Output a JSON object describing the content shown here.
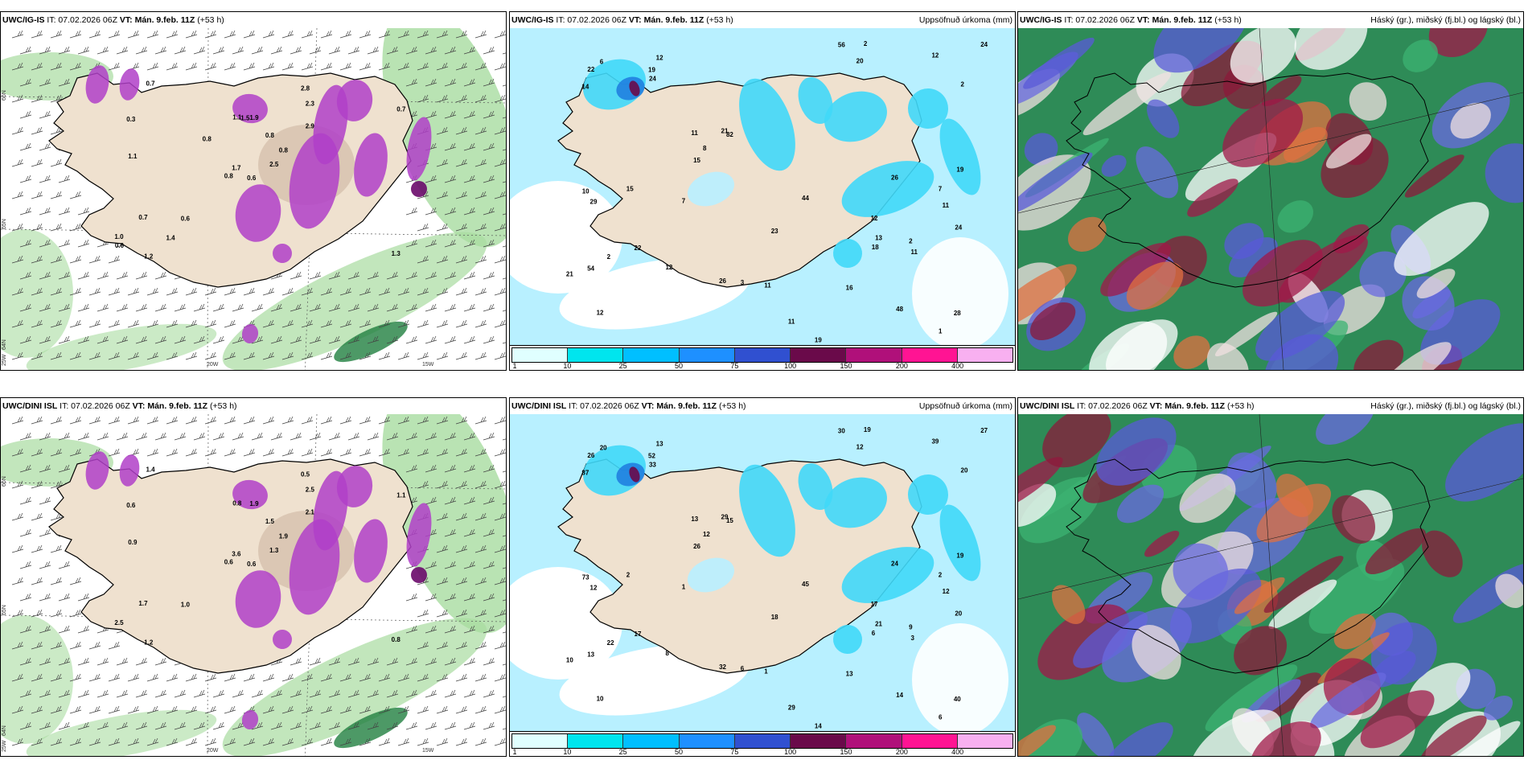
{
  "panels": [
    {
      "id": "tl",
      "model": "UWC/IG-IS",
      "init": "IT: 07.02.2026 06Z",
      "valid_label": "VT:",
      "valid": "Mán. 9.feb. 11Z",
      "lead": "(+53 h)",
      "right": "",
      "lat_labels": [
        "66N",
        "65N",
        "64N"
      ],
      "lon_labels": [
        "20W",
        "15W",
        "25W"
      ],
      "values": [
        "0.6",
        "0.3",
        "1.7",
        "1.0",
        "0.8",
        "0.6",
        "2.8",
        "1.9",
        "2.3",
        "2.5",
        "0.7",
        "1.3",
        "1.1",
        "0.7",
        "0.8",
        "2.9",
        "1.2",
        "1.1",
        "0.8",
        "0.7",
        "0.8",
        "0.6",
        "1.4",
        "1.5"
      ]
    },
    {
      "id": "tm",
      "model": "UWC/IG-IS",
      "init": "IT: 07.02.2026 06Z",
      "valid_label": "VT:",
      "valid": "Mán. 9.feb. 11Z",
      "lead": "(+53 h)",
      "right": "Uppsöfnuð úrkoma (mm)",
      "values": [
        "12",
        "11",
        "12",
        "12",
        "82",
        "48",
        "54",
        "20",
        "11",
        "19",
        "14",
        "10",
        "22",
        "28",
        "26",
        "19",
        "23",
        "44",
        "21",
        "22",
        "24",
        "12",
        "15",
        "24",
        "56",
        "19",
        "13",
        "29",
        "24",
        "26",
        "11",
        "16",
        "8",
        "7",
        "7",
        "11",
        "18",
        "15",
        "11",
        "2",
        "2",
        "2",
        "1",
        "3",
        "2",
        "12",
        "21",
        "6"
      ]
    },
    {
      "id": "tr",
      "model": "UWC/IG-IS",
      "init": "IT: 07.02.2026 06Z",
      "valid_label": "VT:",
      "valid": "Mán. 9.feb. 11Z",
      "lead": "(+53 h)",
      "right": "Háský (gr.), miðský (fj.bl.) og lágský (bl.)"
    },
    {
      "id": "bl",
      "model": "UWC/DINI ISL",
      "init": "IT: 07.02.2026 06Z",
      "valid_label": "VT:",
      "valid": "Mán. 9.feb. 11Z",
      "lead": "(+53 h)",
      "right": "",
      "lat_labels": [
        "66N",
        "65N",
        "64N"
      ],
      "lon_labels": [
        "20W",
        "15W",
        "25W"
      ],
      "values": [
        "0.6",
        "0.6",
        "3.6",
        "2.5",
        "1.9",
        "1.0",
        "0.5",
        "1.9",
        "2.5",
        "1.3",
        "1.4",
        "0.8",
        "0.9",
        "1.1",
        "0.6",
        "2.1",
        "1.2",
        "0.8",
        "1.5",
        "1.7"
      ]
    },
    {
      "id": "bm",
      "model": "UWC/DINI ISL",
      "init": "IT: 07.02.2026 06Z",
      "valid_label": "VT:",
      "valid": "Mán. 9.feb. 11Z",
      "lead": "(+53 h)",
      "right": "Uppsöfnuð úrkoma (mm)",
      "values": [
        "17",
        "12",
        "10",
        "13",
        "15",
        "14",
        "13",
        "12",
        "13",
        "14",
        "87",
        "73",
        "26",
        "40",
        "32",
        "19",
        "18",
        "45",
        "29",
        "17",
        "27",
        "39",
        "26",
        "20",
        "30",
        "52",
        "21",
        "12",
        "33",
        "24",
        "29",
        "13",
        "12",
        "1",
        "2",
        "3",
        "6",
        "2",
        "1",
        "22",
        "20",
        "19",
        "6",
        "6",
        "9",
        "8",
        "10",
        "20"
      ]
    },
    {
      "id": "br",
      "model": "UWC/DINI ISL",
      "init": "IT: 07.02.2026 06Z",
      "valid_label": "VT:",
      "valid": "Mán. 9.feb. 11Z",
      "lead": "(+53 h)",
      "right": "Háský (gr.), miðský (fj.bl.) og lágský (bl.)"
    }
  ],
  "colorbar": {
    "labels": [
      "1",
      "10",
      "25",
      "50",
      "75",
      "100",
      "150",
      "200",
      "400"
    ],
    "colors": [
      "#e0ffff",
      "#00e5ee",
      "#00bfff",
      "#1e90ff",
      "#3050d0",
      "#6a0a4a",
      "#b0107a",
      "#ff1493",
      "#f8b0f0"
    ]
  },
  "colors": {
    "land": "#efe1cf",
    "ocean": "#ffffff",
    "precip_light": "#b8f0ff",
    "precip_mid": "#40d8f8",
    "precip_dark": "#2080e0",
    "snow": "#b040c8",
    "greenwind": "#a8dca0",
    "cloud_green": "#2e8b57",
    "cloud_red": "#8b1a3a",
    "cloud_blue": "#5a5ad8",
    "cloud_white": "#ffffff",
    "cloud_orange": "#e07040"
  }
}
